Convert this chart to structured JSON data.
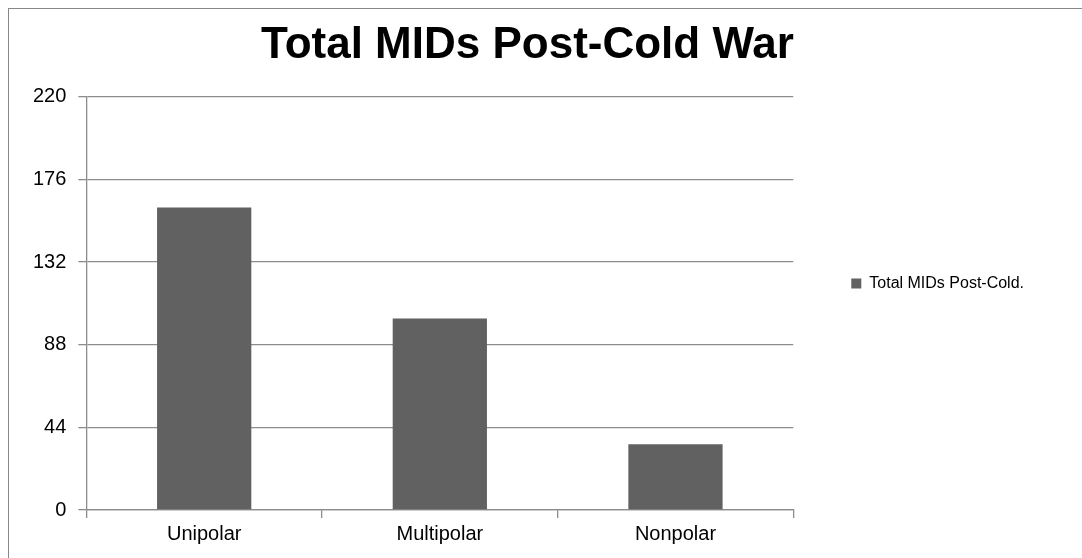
{
  "chart_data": {
    "type": "bar",
    "title": "Total MIDs Post-Cold War",
    "categories": [
      "Unipolar",
      "Multipolar",
      "Nonpolar"
    ],
    "series": [
      {
        "name": "Total MIDs Post-Cold.",
        "color": "#616161",
        "values": [
          161,
          102,
          35
        ]
      }
    ],
    "ylim": [
      0,
      220
    ],
    "yticks": [
      0,
      44,
      88,
      132,
      176,
      220
    ],
    "grid": "y",
    "legend": "right"
  }
}
